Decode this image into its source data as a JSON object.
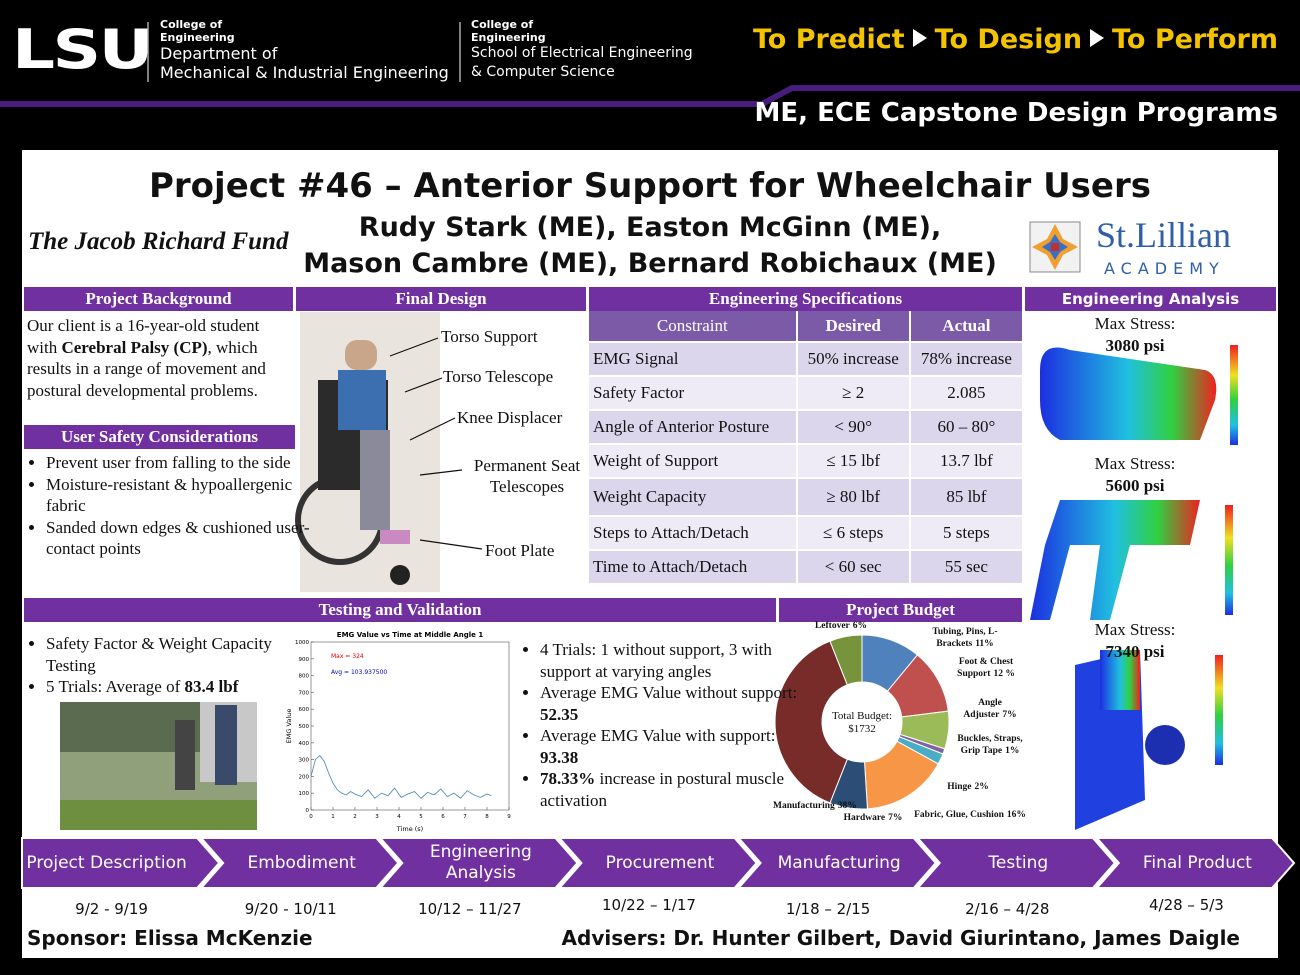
{
  "header": {
    "logo": "LSU",
    "unit1": [
      "College of",
      "Engineering",
      "Department of",
      "Mechanical & Industrial Engineering"
    ],
    "unit2": [
      "College of",
      "Engineering",
      "School of Electrical Engineering",
      "& Computer Science"
    ],
    "tagline": [
      "To Predict",
      "To Design",
      "To Perform"
    ],
    "program": "ME, ECE Capstone Design Programs"
  },
  "title": "Project #46 – Anterior Support for Wheelchair Users",
  "authors": [
    "Rudy Stark (ME), Easton McGinn (ME),",
    "Mason Cambre (ME), Bernard Robichaux (ME)"
  ],
  "fund": "The Jacob Richard Fund",
  "school": {
    "name": "St.Lillian",
    "sub": "ACADEMY"
  },
  "background": {
    "heading": "Project Background",
    "text": [
      "Our client is a 16-year-old student with ",
      {
        "bold": "Cerebral Palsy (CP)"
      },
      ", which results in a range of movement and postural developmental problems."
    ]
  },
  "safety": {
    "heading": "User Safety Considerations",
    "items": [
      "Prevent user from falling to the side",
      "Moisture-resistant & hypoallergenic fabric",
      "Sanded down edges & cushioned user-contact points"
    ]
  },
  "final_design": {
    "heading": "Final Design",
    "labels": [
      "Torso Support",
      "Torso Telescope",
      "Knee Displacer",
      "Permanent Seat Telescopes",
      "Foot Plate"
    ]
  },
  "specs": {
    "heading": "Engineering Specifications",
    "columns": [
      "Constraint",
      "Desired",
      "Actual"
    ],
    "rows": [
      [
        "EMG Signal",
        "50% increase",
        "78% increase"
      ],
      [
        "Safety Factor",
        "≥ 2",
        "2.085"
      ],
      [
        "Angle of Anterior Posture",
        "< 90°",
        "60 – 80°"
      ],
      [
        "Weight of Support",
        "≤ 15 lbf",
        "13.7 lbf"
      ],
      [
        "Weight Capacity",
        "≥ 80 lbf",
        "85 lbf"
      ],
      [
        "Steps to Attach/Detach",
        "≤ 6 steps",
        "5 steps"
      ],
      [
        "Time to Attach/Detach",
        "< 60 sec",
        "55 sec"
      ]
    ]
  },
  "analysis": {
    "heading": "Engineering Analysis",
    "results": [
      {
        "label": "Max Stress:",
        "value": "3080 psi"
      },
      {
        "label": "Max Stress:",
        "value": "5600 psi"
      },
      {
        "label": "Max Stress:",
        "value": "7340 psi"
      }
    ]
  },
  "testing": {
    "heading": "Testing and Validation",
    "left": [
      [
        "Safety Factor & Weight Capacity Testing"
      ],
      [
        "5 Trials: Average of ",
        {
          "bold": "83.4 lbf"
        }
      ]
    ],
    "right": [
      [
        "4 Trials: 1 without support, 3 with support at varying angles"
      ],
      [
        "Average EMG Value without support: ",
        {
          "bold": "52.35"
        }
      ],
      [
        "Average EMG Value with support: ",
        {
          "bold": "93.38"
        }
      ],
      [
        {
          "bold": "78.33%"
        },
        " increase in postural muscle activation"
      ]
    ]
  },
  "budget_heading": "Project Budget",
  "chart_data": [
    {
      "type": "line",
      "title": "EMG Value vs Time at Middle Angle 1",
      "x_label": "Time (s)",
      "y_label": "EMG Value",
      "annotations": [
        {
          "text": "Max = 324",
          "color": "#e00000"
        },
        {
          "text": "Avg = 103.937500",
          "color": "#0000d0"
        }
      ],
      "x": [
        0,
        0.2,
        0.4,
        0.6,
        0.8,
        1.0,
        1.2,
        1.4,
        1.6,
        1.8,
        2.0,
        2.3,
        2.6,
        2.9,
        3.2,
        3.5,
        3.8,
        4.1,
        4.4,
        4.7,
        5.0,
        5.3,
        5.6,
        5.9,
        6.2,
        6.5,
        6.8,
        7.1,
        7.4,
        7.7,
        8.0,
        8.2
      ],
      "series": [
        {
          "name": "EMG",
          "color": "#5a8fbf",
          "values": [
            200,
            300,
            324,
            290,
            220,
            160,
            120,
            100,
            90,
            110,
            95,
            80,
            120,
            70,
            100,
            85,
            130,
            75,
            95,
            110,
            70,
            105,
            90,
            125,
            80,
            100,
            70,
            115,
            90,
            75,
            95,
            85
          ]
        }
      ],
      "xlim": [
        0,
        9
      ],
      "xticks": [
        0,
        1,
        2,
        3,
        4,
        5,
        6,
        7,
        8,
        9
      ],
      "ylim": [
        0,
        1000
      ],
      "yticks": [
        0,
        100,
        200,
        300,
        400,
        500,
        600,
        700,
        800,
        900,
        1000
      ]
    },
    {
      "type": "donut",
      "center_label": "Total Budget:",
      "total": 1732,
      "total_label": "$1732",
      "categories": [
        "Tubing, Pins, L-Brackets",
        "Foot & Chest Support",
        "Angle Adjuster",
        "Buckles, Straps, Grip Tape",
        "Hinge",
        "Fabric, Glue, Cushion",
        "Hardware",
        "Manufacturing",
        "Leftover"
      ],
      "values": [
        11,
        12,
        7,
        1,
        2,
        16,
        7,
        38,
        6
      ],
      "value_labels": [
        "11%",
        "12 %",
        "7%",
        "1%",
        "2%",
        "16%",
        "7%",
        "38%",
        "6%"
      ],
      "colors": [
        "#4f81bd",
        "#c0504d",
        "#9bbb59",
        "#8064a2",
        "#4bacc6",
        "#f79646",
        "#2c4d75",
        "#772c2a",
        "#77933c"
      ]
    }
  ],
  "timeline": [
    {
      "stage": "Project Description",
      "dates": "9/2 - 9/19"
    },
    {
      "stage": "Embodiment",
      "dates": "9/20 - 10/11"
    },
    {
      "stage": "Engineering Analysis",
      "dates": "10/12 – 11/27"
    },
    {
      "stage": "Procurement",
      "dates": "10/22 – 1/17"
    },
    {
      "stage": "Manufacturing",
      "dates": "1/18 – 2/15"
    },
    {
      "stage": "Testing",
      "dates": "2/16 – 4/28"
    },
    {
      "stage": "Final Product",
      "dates": "4/28 – 5/3"
    }
  ],
  "footer": {
    "sponsor": "Sponsor: Elissa McKenzie",
    "advisers": "Advisers: Dr. Hunter Gilbert, David Giurintano, James Daigle"
  }
}
